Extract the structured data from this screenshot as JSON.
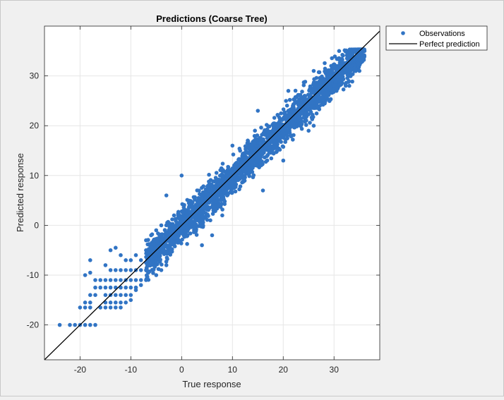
{
  "chart_data": {
    "type": "scatter",
    "title": "Predictions (Coarse Tree)",
    "xlabel": "True response",
    "ylabel": "Predicted response",
    "xlim": [
      -27,
      39
    ],
    "ylim": [
      -27,
      40
    ],
    "xticks": [
      -20,
      -10,
      0,
      10,
      20,
      30
    ],
    "yticks": [
      -20,
      -10,
      0,
      10,
      20,
      30
    ],
    "grid": true,
    "legend_position": "outside-top-right",
    "series": [
      {
        "name": "Observations",
        "kind": "markers",
        "color": "#3174c4",
        "band": {
          "x_range": [
            -7,
            36
          ],
          "y_offset_spread": 3.2
        },
        "points": [
          [
            -24,
            -20
          ],
          [
            -22,
            -20
          ],
          [
            -21,
            -20
          ],
          [
            -20,
            -20
          ],
          [
            -19,
            -20
          ],
          [
            -18,
            -20
          ],
          [
            -17,
            -20
          ],
          [
            -20,
            -16.5
          ],
          [
            -19,
            -16.5
          ],
          [
            -18,
            -16.5
          ],
          [
            -16,
            -16.5
          ],
          [
            -15,
            -16.5
          ],
          [
            -14,
            -16.5
          ],
          [
            -13,
            -16.5
          ],
          [
            -12,
            -16.5
          ],
          [
            -19,
            -15.5
          ],
          [
            -18,
            -15.5
          ],
          [
            -15,
            -15.5
          ],
          [
            -14,
            -15.5
          ],
          [
            -13,
            -15.5
          ],
          [
            -12,
            -15.5
          ],
          [
            -11,
            -15.5
          ],
          [
            -18,
            -14
          ],
          [
            -17,
            -14
          ],
          [
            -15,
            -14
          ],
          [
            -14,
            -14
          ],
          [
            -13,
            -14
          ],
          [
            -12,
            -14
          ],
          [
            -11,
            -14
          ],
          [
            -10,
            -14
          ],
          [
            -17,
            -12.5
          ],
          [
            -16,
            -12.5
          ],
          [
            -15,
            -12.5
          ],
          [
            -14,
            -12.5
          ],
          [
            -13,
            -12.5
          ],
          [
            -12,
            -12.5
          ],
          [
            -11,
            -12.5
          ],
          [
            -10,
            -12.5
          ],
          [
            -9,
            -12.5
          ],
          [
            -19,
            -10
          ],
          [
            -18,
            -9.5
          ],
          [
            -17,
            -11
          ],
          [
            -16,
            -11
          ],
          [
            -15,
            -11
          ],
          [
            -14,
            -11
          ],
          [
            -13,
            -11
          ],
          [
            -12,
            -11
          ],
          [
            -11,
            -11
          ],
          [
            -10,
            -11
          ],
          [
            -9,
            -11
          ],
          [
            -8,
            -11
          ],
          [
            -18,
            -7
          ],
          [
            -15,
            -8
          ],
          [
            -14,
            -9
          ],
          [
            -13,
            -9
          ],
          [
            -12,
            -9
          ],
          [
            -11,
            -9
          ],
          [
            -10,
            -9
          ],
          [
            -9,
            -9
          ],
          [
            -8,
            -9
          ],
          [
            -7,
            -9
          ],
          [
            -14,
            -5
          ],
          [
            -13,
            -4.5
          ],
          [
            -12,
            -6
          ],
          [
            -11,
            -7
          ],
          [
            -10,
            -7
          ],
          [
            -9,
            -6
          ],
          [
            -8,
            -7
          ],
          [
            -7,
            -5
          ],
          [
            -9,
            -13
          ],
          [
            -8,
            -12
          ],
          [
            -7,
            -11
          ],
          [
            -10,
            -15
          ],
          [
            -7,
            -3
          ],
          [
            -6,
            -2
          ],
          [
            -5,
            -1
          ],
          [
            -4,
            0
          ],
          [
            -5,
            -10
          ],
          [
            -4,
            -9
          ],
          [
            -3,
            -8
          ],
          [
            6,
            -2
          ],
          [
            4,
            -4
          ],
          [
            8,
            2
          ],
          [
            -3,
            6
          ],
          [
            0,
            10
          ],
          [
            16,
            7
          ],
          [
            20,
            13
          ],
          [
            25,
            19
          ],
          [
            26,
            20
          ],
          [
            10,
            16
          ],
          [
            15,
            23
          ],
          [
            21,
            27
          ],
          [
            26,
            31
          ],
          [
            31,
            35
          ],
          [
            34,
            35
          ],
          [
            36,
            35
          ],
          [
            35,
            31
          ],
          [
            33,
            28
          ]
        ]
      },
      {
        "name": "Perfect prediction",
        "kind": "line",
        "color": "#000000",
        "x": [
          -27,
          39
        ],
        "y": [
          -27,
          39
        ]
      }
    ]
  }
}
